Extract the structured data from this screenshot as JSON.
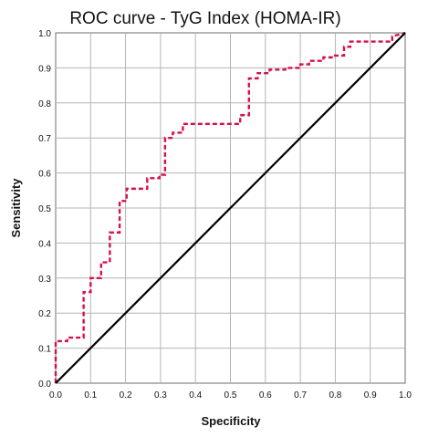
{
  "chart_data": {
    "type": "line",
    "title": "ROC curve - TyG Index (HOMA-IR)",
    "xlabel": "Specificity",
    "ylabel": "Sensitivity",
    "xlim": [
      0,
      1
    ],
    "ylim": [
      0,
      1
    ],
    "x_ticks": [
      "0.0",
      "0.1",
      "0.2",
      "0.3",
      "0.4",
      "0.5",
      "0.6",
      "0.7",
      "0.8",
      "0.9",
      "1.0"
    ],
    "y_ticks": [
      "0.0",
      "0.1",
      "0.2",
      "0.3",
      "0.4",
      "0.5",
      "0.6",
      "0.7",
      "0.8",
      "0.9",
      "1.0"
    ],
    "grid": true,
    "series": [
      {
        "style": "dashed",
        "color": "#d6114a",
        "x": [
          0.0,
          0.0,
          0.033,
          0.033,
          0.08,
          0.08,
          0.1,
          0.1,
          0.13,
          0.13,
          0.155,
          0.155,
          0.183,
          0.183,
          0.203,
          0.203,
          0.262,
          0.262,
          0.297,
          0.297,
          0.313,
          0.313,
          0.335,
          0.335,
          0.364,
          0.364,
          0.528,
          0.528,
          0.553,
          0.553,
          0.578,
          0.578,
          0.612,
          0.612,
          0.657,
          0.657,
          0.7,
          0.7,
          0.725,
          0.725,
          0.766,
          0.766,
          0.79,
          0.79,
          0.825,
          0.825,
          0.843,
          0.843,
          0.963,
          0.963,
          1.0
        ],
        "y": [
          0.0,
          0.12,
          0.12,
          0.13,
          0.13,
          0.26,
          0.26,
          0.3,
          0.3,
          0.345,
          0.345,
          0.43,
          0.43,
          0.52,
          0.52,
          0.555,
          0.555,
          0.585,
          0.585,
          0.595,
          0.595,
          0.7,
          0.7,
          0.715,
          0.715,
          0.74,
          0.74,
          0.765,
          0.765,
          0.87,
          0.87,
          0.885,
          0.885,
          0.895,
          0.895,
          0.9,
          0.9,
          0.91,
          0.91,
          0.92,
          0.92,
          0.93,
          0.93,
          0.935,
          0.935,
          0.96,
          0.96,
          0.975,
          0.975,
          0.99,
          1.0
        ]
      },
      {
        "style": "solid",
        "color": "#000000",
        "x": [
          0,
          1
        ],
        "y": [
          0,
          1
        ]
      }
    ]
  }
}
